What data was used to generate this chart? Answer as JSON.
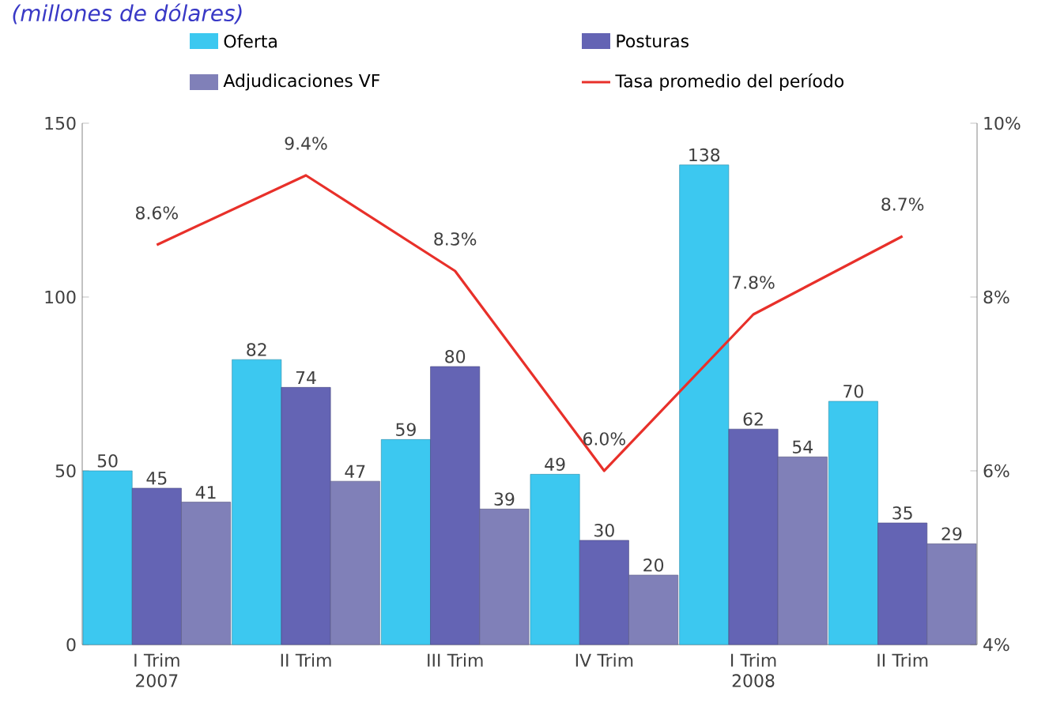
{
  "chart_data": {
    "type": "bar",
    "subtitle": "(millones de dólares)",
    "categories": [
      "I Trim 2007",
      "II Trim",
      "III Trim",
      "IV Trim",
      "I Trim 2008",
      "II Trim"
    ],
    "series": [
      {
        "name": "Oferta",
        "color": "#3cc8f0",
        "values": [
          50,
          82,
          59,
          49,
          138,
          70
        ],
        "value_labels": [
          "50",
          "82",
          "59",
          "49",
          "138",
          "70"
        ]
      },
      {
        "name": "Posturas",
        "color": "#6464b4",
        "values": [
          45,
          74,
          80,
          30,
          62,
          35
        ],
        "value_labels": [
          "45",
          "74",
          "80",
          "30",
          "62",
          "35"
        ]
      },
      {
        "name": "Adjudicaciones VF",
        "color": "#8080b8",
        "values": [
          41,
          47,
          39,
          20,
          54,
          29
        ],
        "value_labels": [
          "41",
          "47",
          "39",
          "20",
          "54",
          "29"
        ]
      },
      {
        "name": "Tasa promedio del período",
        "type": "line",
        "axis": "y2",
        "color": "#e8302a",
        "values": [
          8.6,
          9.4,
          8.3,
          6.0,
          7.8,
          8.7
        ],
        "value_labels": [
          "8.6%",
          "9.4%",
          "8.3%",
          "6.0%",
          "7.8%",
          "8.7%"
        ]
      }
    ],
    "ylim": [
      0,
      150
    ],
    "yticks": [
      0,
      50,
      100,
      150
    ],
    "y2lim": [
      4,
      10
    ],
    "y2ticks": [
      {
        "value": 4,
        "label": "4%"
      },
      {
        "value": 6,
        "label": "6%"
      },
      {
        "value": 8,
        "label": "8%"
      },
      {
        "value": 10,
        "label": "10%"
      }
    ],
    "legend": "top",
    "grid": false,
    "marker": "none",
    "line_style": "solid"
  }
}
